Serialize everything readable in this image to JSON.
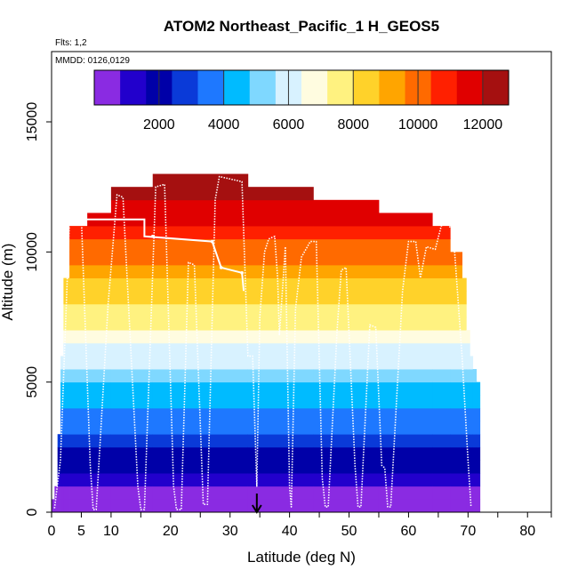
{
  "chart_data": {
    "type": "heatmap",
    "title": "ATOM2 Northeast_Pacific_1 H_GEOS5",
    "annotations": [
      "Flts: 1,2",
      "MMDD: 0126,0129"
    ],
    "xlabel": "Latitude (deg N)",
    "ylabel": "Altitude (m)",
    "xlim": [
      0,
      84
    ],
    "ylim": [
      0,
      17700
    ],
    "xticks": [
      0,
      5,
      10,
      20,
      30,
      40,
      50,
      60,
      70,
      80
    ],
    "yticks": [
      0,
      5000,
      10000,
      15000
    ],
    "colorbar": {
      "min": 0,
      "max": 12800,
      "ticks": [
        2000,
        4000,
        6000,
        8000,
        10000,
        12000
      ],
      "colors": [
        "#8a2be2",
        "#2200cc",
        "#0000a8",
        "#0a3ad8",
        "#1e78ff",
        "#00bbff",
        "#7fd8ff",
        "#d8f2ff",
        "#fffce0",
        "#fff280",
        "#ffd22a",
        "#ffa500",
        "#ff6a00",
        "#ff2000",
        "#e00000",
        "#a51010"
      ]
    },
    "layer_height_m": 500,
    "column_profile": [
      {
        "lat0": 0.0,
        "lat1": 0.5,
        "top": 500
      },
      {
        "lat0": 0.5,
        "lat1": 1.0,
        "top": 1000
      },
      {
        "lat0": 1.0,
        "lat1": 1.5,
        "top": 3000
      },
      {
        "lat0": 1.5,
        "lat1": 2.0,
        "top": 6000
      },
      {
        "lat0": 2.0,
        "lat1": 3.0,
        "top": 9000
      },
      {
        "lat0": 3.0,
        "lat1": 6.0,
        "top": 11000
      },
      {
        "lat0": 6.0,
        "lat1": 10.0,
        "top": 11500
      },
      {
        "lat0": 10.0,
        "lat1": 17.0,
        "top": 12500
      },
      {
        "lat0": 17.0,
        "lat1": 33.0,
        "top": 13000
      },
      {
        "lat0": 33.0,
        "lat1": 44.0,
        "top": 12500
      },
      {
        "lat0": 44.0,
        "lat1": 55.0,
        "top": 12000
      },
      {
        "lat0": 55.0,
        "lat1": 64.0,
        "top": 11500
      },
      {
        "lat0": 64.0,
        "lat1": 67.0,
        "top": 11000
      },
      {
        "lat0": 67.0,
        "lat1": 69.0,
        "top": 10000
      },
      {
        "lat0": 69.0,
        "lat1": 69.7,
        "top": 9000
      },
      {
        "lat0": 69.7,
        "lat1": 70.3,
        "top": 7000
      },
      {
        "lat0": 70.3,
        "lat1": 70.8,
        "top": 6000
      },
      {
        "lat0": 70.8,
        "lat1": 71.4,
        "top": 5500
      },
      {
        "lat0": 71.4,
        "lat1": 72.0,
        "top": 5000
      }
    ],
    "flight_track": [
      [
        0.5,
        150
      ],
      [
        1.5,
        2000
      ],
      [
        3.0,
        11200
      ],
      [
        5.0,
        11300
      ],
      [
        6.5,
        1800
      ],
      [
        7.0,
        100
      ],
      [
        7.5,
        100
      ],
      [
        9.5,
        8000
      ],
      [
        11.0,
        12200
      ],
      [
        12.0,
        12100
      ],
      [
        14.5,
        1000
      ],
      [
        15.0,
        100
      ],
      [
        15.6,
        100
      ],
      [
        17.5,
        12500
      ],
      [
        19.0,
        12600
      ],
      [
        20.5,
        1000
      ],
      [
        21.0,
        100
      ],
      [
        21.8,
        100
      ],
      [
        23.0,
        9600
      ],
      [
        24.0,
        9500
      ],
      [
        25.5,
        300
      ],
      [
        26.2,
        300
      ],
      [
        27.5,
        12000
      ],
      [
        28.2,
        12900
      ],
      [
        32.0,
        12700
      ],
      [
        33.0,
        6000
      ],
      [
        33.8,
        6000
      ],
      [
        34.5,
        1000
      ],
      [
        35.0,
        7500
      ],
      [
        35.8,
        10000
      ],
      [
        36.5,
        10500
      ],
      [
        37.5,
        10600
      ],
      [
        38.0,
        9000
      ],
      [
        38.3,
        6800
      ],
      [
        39.3,
        10200
      ],
      [
        40.0,
        1000
      ],
      [
        40.3,
        200
      ],
      [
        41.0,
        7800
      ],
      [
        42.0,
        9800
      ],
      [
        43.5,
        10400
      ],
      [
        44.5,
        10400
      ],
      [
        45.5,
        1300
      ],
      [
        46.0,
        200
      ],
      [
        46.5,
        200
      ],
      [
        48.0,
        7000
      ],
      [
        48.7,
        9300
      ],
      [
        49.5,
        9400
      ],
      [
        51.0,
        1800
      ],
      [
        51.5,
        200
      ],
      [
        52.0,
        200
      ],
      [
        53.5,
        7200
      ],
      [
        54.5,
        7100
      ],
      [
        55.5,
        1800
      ],
      [
        56.0,
        1700
      ],
      [
        56.5,
        200
      ],
      [
        57.0,
        200
      ],
      [
        59.0,
        8500
      ],
      [
        60.0,
        10400
      ],
      [
        61.2,
        10400
      ],
      [
        62.0,
        9000
      ],
      [
        63.0,
        10200
      ],
      [
        64.5,
        10100
      ],
      [
        65.5,
        11000
      ],
      [
        66.5,
        11100
      ],
      [
        67.5,
        10800
      ],
      [
        69.0,
        6000
      ],
      [
        70.0,
        2000
      ],
      [
        70.5,
        200
      ]
    ],
    "track_points": [
      [
        5,
        11200
      ],
      [
        17,
        10600
      ],
      [
        27,
        10400
      ],
      [
        28.5,
        9400
      ],
      [
        32,
        9200
      ]
    ],
    "track_polyline": [
      [
        3,
        11250
      ],
      [
        15.6,
        11250
      ],
      [
        15.6,
        10600
      ],
      [
        27,
        10400
      ],
      [
        28.5,
        9400
      ],
      [
        32,
        9200
      ],
      [
        32.3,
        8500
      ]
    ],
    "arrow_lat": 34.5
  }
}
